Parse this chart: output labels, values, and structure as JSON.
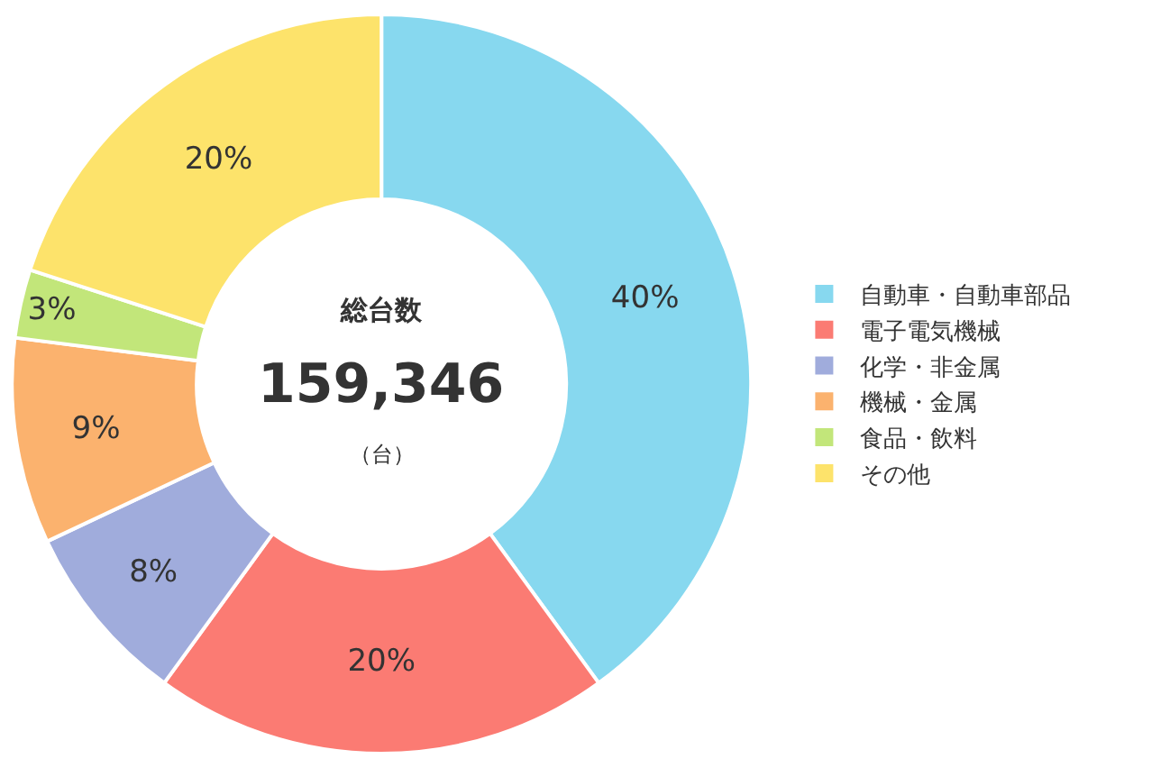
{
  "chart_data": {
    "type": "donut",
    "categories": [
      "自動車・自動車部品",
      "電子電気機械",
      "化学・非金属",
      "機械・金属",
      "食品・飲料",
      "その他"
    ],
    "values": [
      40,
      20,
      8,
      9,
      3,
      20
    ],
    "value_labels": [
      "40%",
      "20%",
      "8%",
      "9%",
      "3%",
      "20%"
    ],
    "colors": [
      "#87d8ef",
      "#fb7b73",
      "#a0acdc",
      "#fbb26e",
      "#c2e67a",
      "#fde36b"
    ],
    "annotations": [
      "総台数",
      "159,346",
      "（台）"
    ],
    "legend": "right"
  }
}
